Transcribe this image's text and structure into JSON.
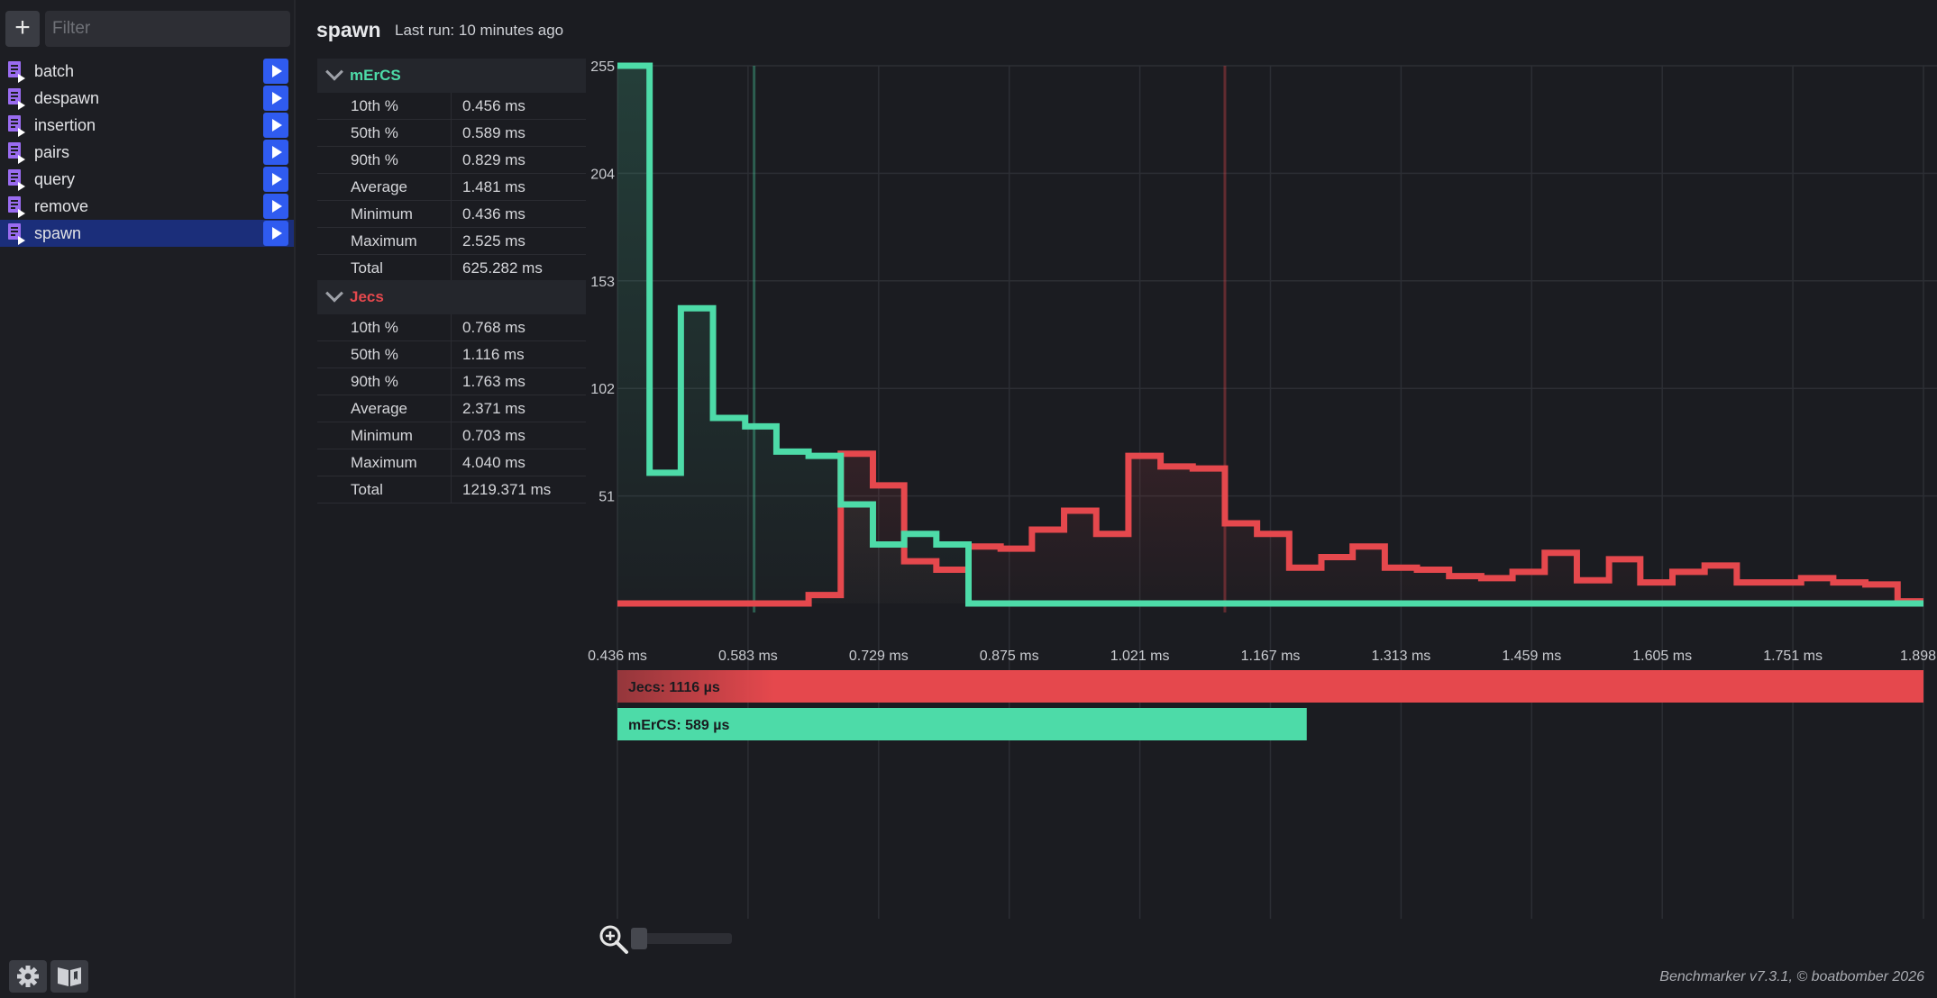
{
  "sidebar": {
    "add_label": "+",
    "filter_placeholder": "Filter",
    "items": [
      {
        "label": "batch"
      },
      {
        "label": "despawn"
      },
      {
        "label": "insertion"
      },
      {
        "label": "pairs"
      },
      {
        "label": "query"
      },
      {
        "label": "remove"
      },
      {
        "label": "spawn",
        "selected": true
      }
    ],
    "bottom_icons": [
      "gear-icon",
      "book-icon"
    ]
  },
  "header": {
    "title": "spawn",
    "last_run": "Last run: 10 minutes ago"
  },
  "stats": [
    {
      "name": "mErCS",
      "color": "#4ddba8",
      "rows": [
        [
          "10th %",
          "0.456 ms"
        ],
        [
          "50th %",
          "0.589 ms"
        ],
        [
          "90th %",
          "0.829 ms"
        ],
        [
          "Average",
          "1.481 ms"
        ],
        [
          "Minimum",
          "0.436 ms"
        ],
        [
          "Maximum",
          "2.525 ms"
        ],
        [
          "Total",
          "625.282 ms"
        ]
      ]
    },
    {
      "name": "Jecs",
      "color": "#e5484d",
      "rows": [
        [
          "10th %",
          "0.768 ms"
        ],
        [
          "50th %",
          "1.116 ms"
        ],
        [
          "90th %",
          "1.763 ms"
        ],
        [
          "Average",
          "2.371 ms"
        ],
        [
          "Minimum",
          "0.703 ms"
        ],
        [
          "Maximum",
          "4.040 ms"
        ],
        [
          "Total",
          "1219.371 ms"
        ]
      ]
    }
  ],
  "chart_data": {
    "type": "line",
    "x_tick_labels": [
      "0.436 ms",
      "0.583 ms",
      "0.729 ms",
      "0.875 ms",
      "1.021 ms",
      "1.167 ms",
      "1.313 ms",
      "1.459 ms",
      "1.605 ms",
      "1.751 ms",
      "1.898"
    ],
    "y_tick_labels": [
      "255",
      "204",
      "153",
      "102",
      "51"
    ],
    "xlim": [
      0.436,
      1.898
    ],
    "ylim": [
      0,
      255
    ],
    "grid": true,
    "series": [
      {
        "name": "mErCS",
        "color": "#4ddba8",
        "x": [
          0.436,
          0.472,
          0.507,
          0.543,
          0.579,
          0.614,
          0.65,
          0.686,
          0.722,
          0.757,
          0.793,
          0.829,
          1.898
        ],
        "y": [
          255,
          62,
          140,
          88,
          84,
          72,
          70,
          47,
          28,
          33,
          28,
          0,
          0
        ]
      },
      {
        "name": "Jecs",
        "color": "#e5484d",
        "x": [
          0.436,
          0.65,
          0.686,
          0.722,
          0.757,
          0.793,
          0.829,
          0.865,
          0.9,
          0.936,
          0.972,
          1.008,
          1.044,
          1.08,
          1.116,
          1.152,
          1.188,
          1.224,
          1.259,
          1.295,
          1.331,
          1.367,
          1.403,
          1.438,
          1.474,
          1.51,
          1.546,
          1.581,
          1.617,
          1.653,
          1.689,
          1.725,
          1.761,
          1.797,
          1.833,
          1.869,
          1.898
        ],
        "y": [
          0,
          4,
          71,
          56,
          20,
          16,
          27,
          26,
          35,
          44,
          33,
          70,
          65,
          64,
          38,
          33,
          17,
          22,
          27,
          17,
          16,
          13,
          12,
          15,
          24,
          11,
          21,
          10,
          15,
          18,
          10,
          10,
          12,
          10,
          9,
          1,
          1
        ]
      }
    ],
    "percentile_lines": [
      {
        "series": "mErCS",
        "x": 0.589
      },
      {
        "series": "Jecs",
        "x": 1.116
      }
    ],
    "summary_bars": [
      {
        "label": "Jecs: 1116 µs",
        "value": 1116,
        "color": "#e5484d"
      },
      {
        "label": "mErCS: 589 µs",
        "value": 589,
        "color": "#4ddba8"
      }
    ]
  },
  "zoom": {
    "value_fraction": 0.0
  },
  "footer": "Benchmarker v7.3.1, © boatbomber 2026"
}
